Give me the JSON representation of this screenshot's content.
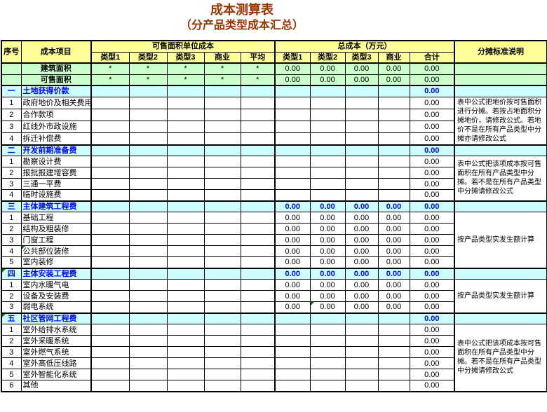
{
  "title": "成本测算表",
  "subtitle": "（分产品类型成本汇总）",
  "colors": {
    "title_text": "#993300",
    "header_bg": "#FFFF99",
    "area_row_bg": "#CCFFCC",
    "section_row_bg": "#CCFFFF",
    "section_text": "#0000FF",
    "grid": "#000000",
    "comment_marker": "#008200"
  },
  "header": {
    "seq_label": "序号",
    "item_label": "成本项目",
    "unit_group_label": "可售面积单位成本",
    "total_group_label": "总成本（万元）",
    "unit_columns": [
      "类型1",
      "类型2",
      "类型3",
      "商业",
      "平均"
    ],
    "total_columns": [
      "类型1",
      "类型2",
      "类型3",
      "商业",
      "合计"
    ],
    "note_label": "分摊标准说明"
  },
  "area_rows": [
    {
      "name": "建筑面积",
      "unit_values": [
        "*",
        "*",
        "*",
        "*",
        "*"
      ],
      "total_values": [
        "0.00",
        "0.00",
        "0.00",
        "0.00",
        "0.00"
      ],
      "note": ""
    },
    {
      "name": "可售面积",
      "unit_values": [
        "*",
        "*",
        "*",
        "*",
        "*"
      ],
      "total_values": [
        "0.00",
        "0.00",
        "0.00",
        "0.00",
        "0.00"
      ],
      "note": ""
    }
  ],
  "sections": [
    {
      "seq": "一",
      "name": "土地获得价款",
      "unit_values": [
        "",
        "",
        "",
        "",
        ""
      ],
      "total_values": [
        "",
        "",
        "",
        "",
        "0.00"
      ],
      "note": "表中公式把地价按可售面积进行分摊。若按占地面积分摊地价，请修改公式。若地价不是在所有产品类型中分摊亦请修改公式",
      "items": [
        {
          "seq": "1",
          "name": "政府地价及相关费用",
          "unit_values": [
            "",
            "",
            "",
            "",
            ""
          ],
          "total_values": [
            "",
            "",
            "",
            "",
            "0.00"
          ]
        },
        {
          "seq": "2",
          "name": "合作款项",
          "unit_values": [
            "",
            "",
            "",
            "",
            ""
          ],
          "total_values": [
            "",
            "",
            "",
            "",
            "0.00"
          ]
        },
        {
          "seq": "3",
          "name": "红线外市政设施",
          "unit_values": [
            "",
            "",
            "",
            "",
            ""
          ],
          "total_values": [
            "",
            "",
            "",
            "",
            "0.00"
          ]
        },
        {
          "seq": "4",
          "name": "拆迁补偿费",
          "unit_values": [
            "",
            "",
            "",
            "",
            ""
          ],
          "total_values": [
            "",
            "",
            "",
            "",
            "0.00"
          ]
        }
      ]
    },
    {
      "seq": "二",
      "name": "开发前期准备费",
      "unit_values": [
        "",
        "",
        "",
        "",
        ""
      ],
      "total_values": [
        "",
        "",
        "",
        "",
        "0.00"
      ],
      "note": "表中公式把该项成本按可售面积在所有产品类型中分摊。若不是在所有产品类型中分摊请修改公式",
      "items": [
        {
          "seq": "1",
          "name": "勘察设计费",
          "unit_values": [
            "",
            "",
            "",
            "",
            ""
          ],
          "total_values": [
            "",
            "",
            "",
            "",
            "0.00"
          ]
        },
        {
          "seq": "2",
          "name": "报批报建增容费",
          "unit_values": [
            "",
            "",
            "",
            "",
            ""
          ],
          "total_values": [
            "",
            "",
            "",
            "",
            "0.00"
          ]
        },
        {
          "seq": "3",
          "name": "三通一平费",
          "unit_values": [
            "",
            "",
            "",
            "",
            ""
          ],
          "total_values": [
            "",
            "",
            "",
            "",
            "0.00"
          ]
        },
        {
          "seq": "4",
          "name": "临时设施费",
          "unit_values": [
            "",
            "",
            "",
            "",
            ""
          ],
          "total_values": [
            "",
            "",
            "",
            "",
            "0.00"
          ]
        }
      ]
    },
    {
      "seq": "三",
      "name": "主体建筑工程费",
      "unit_values": [
        "",
        "",
        "",
        "",
        ""
      ],
      "total_values": [
        "0.00",
        "0.00",
        "0.00",
        "0.00",
        "0.00"
      ],
      "note": "按产品类型实发生额计算",
      "items": [
        {
          "seq": "1",
          "name": "基础工程",
          "unit_values": [
            "",
            "",
            "",
            "",
            ""
          ],
          "total_values": [
            "0.00",
            "0.00",
            "0.00",
            "0.00",
            "0.00"
          ]
        },
        {
          "seq": "2",
          "name": "结构及粗装修",
          "unit_values": [
            "",
            "",
            "",
            "",
            ""
          ],
          "total_values": [
            "0.00",
            "0.00",
            "0.00",
            "0.00",
            "0.00"
          ]
        },
        {
          "seq": "3",
          "name": "门窗工程",
          "unit_values": [
            "",
            "",
            "",
            "",
            ""
          ],
          "total_values": [
            "0.00",
            "0.00",
            "0.00",
            "0.00",
            "0.00"
          ]
        },
        {
          "seq": "4",
          "name": "公共部位装修",
          "unit_values": [
            "",
            "",
            "",
            "",
            ""
          ],
          "total_values": [
            "0.00",
            "0.00",
            "0.00",
            "0.00",
            "0.00"
          ],
          "markers": {
            "name": true
          }
        },
        {
          "seq": "5",
          "name": "室内装修",
          "unit_values": [
            "",
            "",
            "",
            "",
            ""
          ],
          "total_values": [
            "0.00",
            "0.00",
            "0.00",
            "0.00",
            "0.00"
          ]
        }
      ]
    },
    {
      "seq": "四",
      "name": "主体安装工程费",
      "markers": {
        "seq": true
      },
      "unit_values": [
        "",
        "",
        "",
        "",
        ""
      ],
      "total_values": [
        "0.00",
        "0.00",
        "0.00",
        "0.00",
        "0.00"
      ],
      "note": "按产品类型实发生额计算",
      "items": [
        {
          "seq": "1",
          "name": "室内水暖气电",
          "unit_values": [
            "",
            "",
            "",
            "",
            ""
          ],
          "total_values": [
            "0.00",
            "0.00",
            "0.00",
            "0.00",
            "0.00"
          ]
        },
        {
          "seq": "2",
          "name": "设备及安装费",
          "unit_values": [
            "",
            "",
            "",
            "",
            ""
          ],
          "total_values": [
            "0.00",
            "0.00",
            "0.00",
            "0.00",
            "0.00"
          ]
        },
        {
          "seq": "3",
          "name": "弱电系统",
          "unit_values": [
            "",
            "",
            "",
            "",
            ""
          ],
          "total_values": [
            "0.00",
            "0.00",
            "0.00",
            "0.00",
            "0.00"
          ],
          "markers": {
            "total_1": true
          }
        }
      ]
    },
    {
      "seq": "五",
      "name": "社区管网工程费",
      "markers": {
        "seq": true
      },
      "unit_values": [
        "",
        "",
        "",
        "",
        ""
      ],
      "total_values": [
        "",
        "",
        "",
        "",
        "0.00"
      ],
      "note": "表中公式把该项成本按可售面积在所有产品类型中分摊。若不是在所有产品类型中分摊请修改公式",
      "items": [
        {
          "seq": "1",
          "name": "室外给排水系统",
          "unit_values": [
            "",
            "",
            "",
            "",
            ""
          ],
          "total_values": [
            "",
            "",
            "",
            "",
            "0.00"
          ]
        },
        {
          "seq": "2",
          "name": "室外采暖系统",
          "unit_values": [
            "",
            "",
            "",
            "",
            ""
          ],
          "total_values": [
            "",
            "",
            "",
            "",
            "0.00"
          ]
        },
        {
          "seq": "3",
          "name": "室外燃气系统",
          "unit_values": [
            "",
            "",
            "",
            "",
            ""
          ],
          "total_values": [
            "",
            "",
            "",
            "",
            "0.00"
          ]
        },
        {
          "seq": "4",
          "name": "室外高低压线路",
          "unit_values": [
            "",
            "",
            "",
            "",
            ""
          ],
          "total_values": [
            "",
            "",
            "",
            "",
            "0.00"
          ]
        },
        {
          "seq": "5",
          "name": "室外智能化系统",
          "unit_values": [
            "",
            "",
            "",
            "",
            ""
          ],
          "total_values": [
            "",
            "",
            "",
            "",
            "0.00"
          ]
        },
        {
          "seq": "6",
          "name": "其他",
          "unit_values": [
            "",
            "",
            "",
            "",
            ""
          ],
          "total_values": [
            "",
            "",
            "",
            "",
            "0.00"
          ]
        }
      ]
    }
  ]
}
